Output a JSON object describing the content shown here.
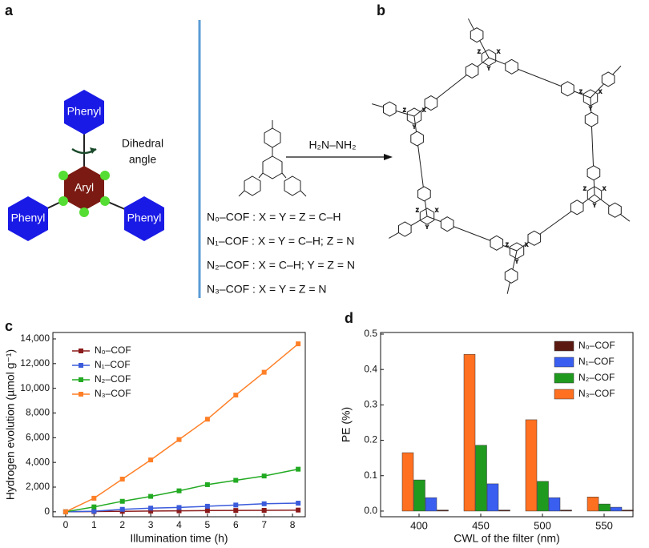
{
  "panel_labels": [
    "a",
    "b",
    "c",
    "d"
  ],
  "panel_a": {
    "substituents": [
      "Phenyl",
      "Phenyl",
      "Phenyl"
    ],
    "core": "Aryl",
    "angle_label": [
      "Dihedral",
      "angle"
    ]
  },
  "reaction": {
    "reagent": "H₂N–NH₂",
    "variants": [
      "N₀–COF : X = Y = Z = C–H",
      "N₁–COF : X = Y = C–H; Z = N",
      "N₂–COF : X = C–H; Y = Z = N",
      "N₃–COF : X = Y = Z = N"
    ]
  },
  "structure": {
    "atoms": [
      "X",
      "Y",
      "Z"
    ]
  },
  "chart_data": [
    {
      "type": "line",
      "xlabel": "Illumination time (h)",
      "ylabel": "Hydrogen evolution (µmol g⁻¹)",
      "x": [
        0,
        1,
        2,
        3,
        4,
        5,
        6,
        7,
        8.2
      ],
      "xlim": [
        -0.45,
        8.45
      ],
      "xticks": [
        0,
        1,
        2,
        3,
        4,
        5,
        6,
        7,
        8
      ],
      "ylim": [
        -400,
        14000
      ],
      "yticks": [
        0,
        {
          "value": 2000,
          "label": "2,000"
        },
        {
          "value": 4000,
          "label": "4,000"
        },
        {
          "value": 6000,
          "label": "6,000"
        },
        {
          "value": 8000,
          "label": "8,000"
        },
        {
          "value": 10000,
          "label": "10,000"
        },
        {
          "value": 12000,
          "label": "12,000"
        },
        {
          "value": 14000,
          "label": "14,000"
        }
      ],
      "grid": false,
      "legend": "upper left",
      "series": [
        {
          "name": "N₀–COF",
          "color": "#8b1a1a",
          "values": [
            0,
            20,
            40,
            60,
            80,
            100,
            110,
            120,
            140
          ]
        },
        {
          "name": "N₁–COF",
          "color": "#3b5bdb",
          "values": [
            0,
            50,
            200,
            300,
            350,
            450,
            550,
            650,
            700
          ]
        },
        {
          "name": "N₂–COF",
          "color": "#22aa22",
          "values": [
            0,
            400,
            850,
            1250,
            1700,
            2200,
            2550,
            2900,
            3450
          ]
        },
        {
          "name": "N₃–COF",
          "color": "#ff7f27",
          "values": [
            0,
            1100,
            2650,
            4200,
            5850,
            7500,
            9450,
            11300,
            13600
          ]
        }
      ]
    },
    {
      "type": "bar",
      "xlabel": "CWL of the filter (nm)",
      "ylabel": "PE (%)",
      "categories": [
        "400",
        "450",
        "500",
        "550"
      ],
      "ylim": [
        -0.016,
        0.5
      ],
      "yticks": [
        {
          "value": 0,
          "label": "0.0"
        },
        0.1,
        0.2,
        0.3,
        0.4,
        0.5
      ],
      "grid": false,
      "legend": "upper right",
      "series": [
        {
          "name": "N₀–COF",
          "color": "#5a1a12",
          "values": [
            0.003,
            0.003,
            0.003,
            0.003
          ]
        },
        {
          "name": "N₁–COF",
          "color": "#3a5ef0",
          "values": [
            0.038,
            0.077,
            0.038,
            0.011
          ]
        },
        {
          "name": "N₂–COF",
          "color": "#1f9a1f",
          "values": [
            0.088,
            0.186,
            0.084,
            0.02
          ]
        },
        {
          "name": "N₃–COF",
          "color": "#ff7020",
          "values": [
            0.165,
            0.443,
            0.258,
            0.04
          ]
        }
      ]
    }
  ]
}
